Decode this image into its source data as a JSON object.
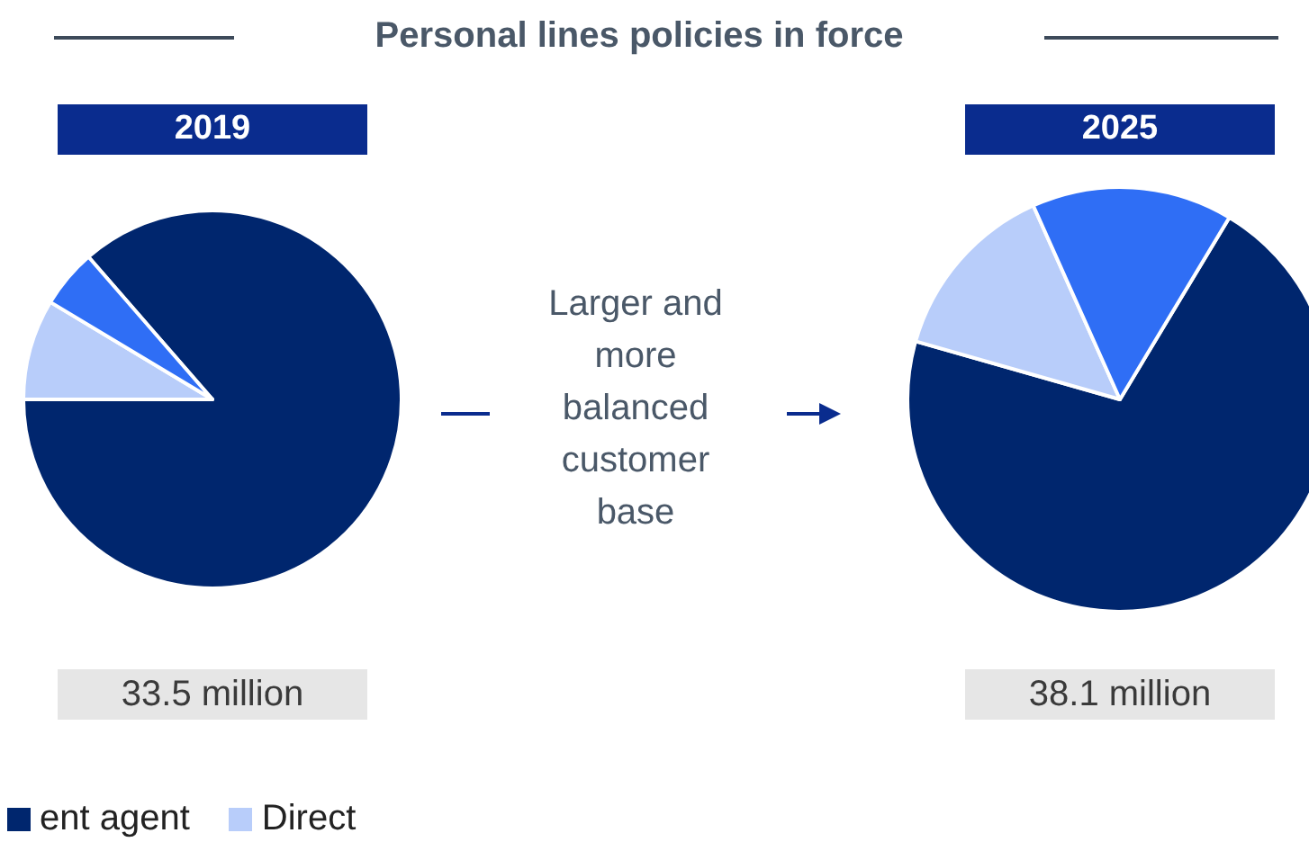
{
  "chart_data": [
    {
      "type": "other",
      "title": "Personal lines policies in force"
    },
    {
      "type": "pie",
      "title": "2019",
      "annotations": [
        "33.5 million"
      ],
      "categories": [
        "ent agent",
        "Direct",
        null
      ],
      "values": [
        86.4,
        8.6,
        5.0
      ],
      "colors": [
        "#00266e",
        "#b8cdfa",
        "#2f6ef5"
      ],
      "legend": "bottom left"
    },
    {
      "type": "other",
      "annotations": [
        "Larger and more balanced customer base"
      ]
    },
    {
      "type": "pie",
      "title": "2025",
      "annotations": [
        "38.1 million"
      ],
      "categories": [
        null,
        null,
        null
      ],
      "values": [
        70.8,
        13.9,
        15.3
      ],
      "colors": [
        "#00266e",
        "#b8cdfa",
        "#2f6ef5"
      ]
    }
  ]
}
